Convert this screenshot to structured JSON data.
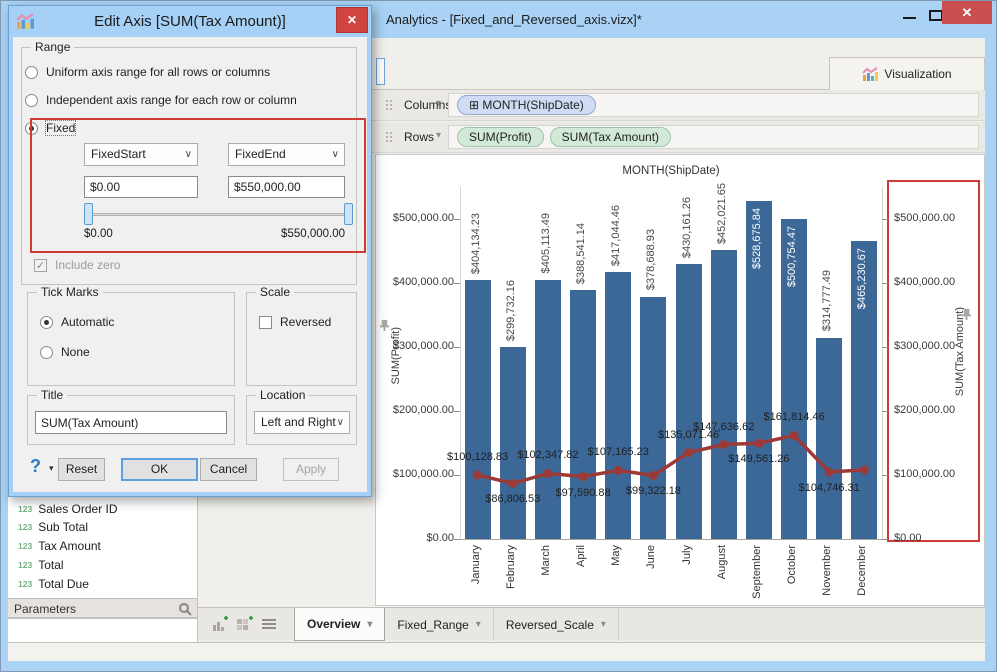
{
  "window": {
    "title": "Analytics - [Fixed_and_Reversed_axis.vizx]*"
  },
  "viz_tab": {
    "label": "Visualization"
  },
  "shelf": {
    "columns_label": "Columns",
    "columns_pills": [
      "MONTH(ShipDate)"
    ],
    "rows_label": "Rows",
    "rows_pills": [
      "SUM(Profit)",
      "SUM(Tax Amount)"
    ]
  },
  "sidebar": {
    "fields": [
      "Sales Order ID",
      "Sub Total",
      "Tax Amount",
      "Total",
      "Total Due"
    ],
    "field_icon": "123",
    "parameters_label": "Parameters"
  },
  "bottom_bar": {
    "tabs": [
      {
        "label": "Overview",
        "active": true
      },
      {
        "label": "Fixed_Range",
        "active": false
      },
      {
        "label": "Reversed_Scale",
        "active": false
      }
    ]
  },
  "dialog": {
    "title": "Edit Axis [SUM(Tax Amount)]",
    "range": {
      "label": "Range",
      "options": [
        {
          "label": "Uniform axis range for all rows or columns",
          "selected": false
        },
        {
          "label": "Independent axis range for each row or column",
          "selected": false
        },
        {
          "label": "Fixed",
          "selected": true
        }
      ],
      "fixed_start_combo": "FixedStart",
      "fixed_end_combo": "FixedEnd",
      "fixed_start_value": "$0.00",
      "fixed_end_value": "$550,000.00",
      "slider_min_label": "$0.00",
      "slider_max_label": "$550,000.00",
      "include_zero_label": "Include zero",
      "include_zero_checked": true
    },
    "tick_marks": {
      "label": "Tick Marks",
      "options": [
        {
          "label": "Automatic",
          "selected": true
        },
        {
          "label": "None",
          "selected": false
        }
      ]
    },
    "scale": {
      "label": "Scale",
      "checkbox_label": "Reversed",
      "checked": false
    },
    "title_box": {
      "label": "Title",
      "value": "SUM(Tax Amount)"
    },
    "location_box": {
      "label": "Location",
      "value": "Left and Right"
    },
    "buttons": {
      "help": "?",
      "reset": "Reset",
      "ok": "OK",
      "cancel": "Cancel",
      "apply": "Apply"
    }
  },
  "chart_data": {
    "type": "bar",
    "title": "MONTH(ShipDate)",
    "categories": [
      "January",
      "February",
      "March",
      "April",
      "May",
      "June",
      "July",
      "August",
      "September",
      "October",
      "November",
      "December"
    ],
    "series": [
      {
        "name": "SUM(Profit)",
        "type": "bar",
        "color": "#3c6898",
        "values": [
          404134.23,
          299732.16,
          405113.49,
          388541.14,
          417044.46,
          378688.93,
          430161.26,
          452021.65,
          528675.84,
          500754.47,
          314777.49,
          465230.67
        ],
        "labels": [
          "$404,134.23",
          "$299,732.16",
          "$405,113.49",
          "$388,541.14",
          "$417,044.46",
          "$378,688.93",
          "$430,161.26",
          "$452,021.65",
          "$528,675.84",
          "$500,754.47",
          "$314,777.49",
          "$465,230.67"
        ],
        "label_inside": [
          false,
          false,
          false,
          false,
          false,
          false,
          false,
          false,
          true,
          true,
          false,
          true
        ]
      },
      {
        "name": "SUM(Tax Amount)",
        "type": "line",
        "color": "#9d3a37",
        "values": [
          100128.83,
          86806.53,
          102347.82,
          97590.88,
          107165.23,
          99322.18,
          135071.46,
          147636.62,
          149561.26,
          161814.46,
          104746.31,
          108000
        ],
        "labels": [
          "$100,128.83",
          "$86,806.53",
          "$102,347.82",
          "$97,590.88",
          "$107,165.23",
          "$99,322.18",
          "$135,071.46",
          "$147,636.62",
          "$149,561.26",
          "$161,814.46",
          "$104,746.31",
          ""
        ],
        "label_pos": [
          "above",
          "below",
          "above",
          "below",
          "above",
          "below",
          "above",
          "above",
          "below",
          "above",
          "below",
          "none"
        ]
      }
    ],
    "ylim": [
      0,
      550000
    ],
    "ytick_values": [
      0,
      100000,
      200000,
      300000,
      400000,
      500000
    ],
    "ytick_labels": [
      "$0.00",
      "$100,000.00",
      "$200,000.00",
      "$300,000.00",
      "$400,000.00",
      "$500,000.00"
    ],
    "ylabel_left": "SUM(Profit)",
    "ylabel_right": "SUM(Tax Amount)",
    "right_axis_highlighted": true,
    "highlight_color": "#cf3a33",
    "grid": false,
    "legend": "none"
  }
}
